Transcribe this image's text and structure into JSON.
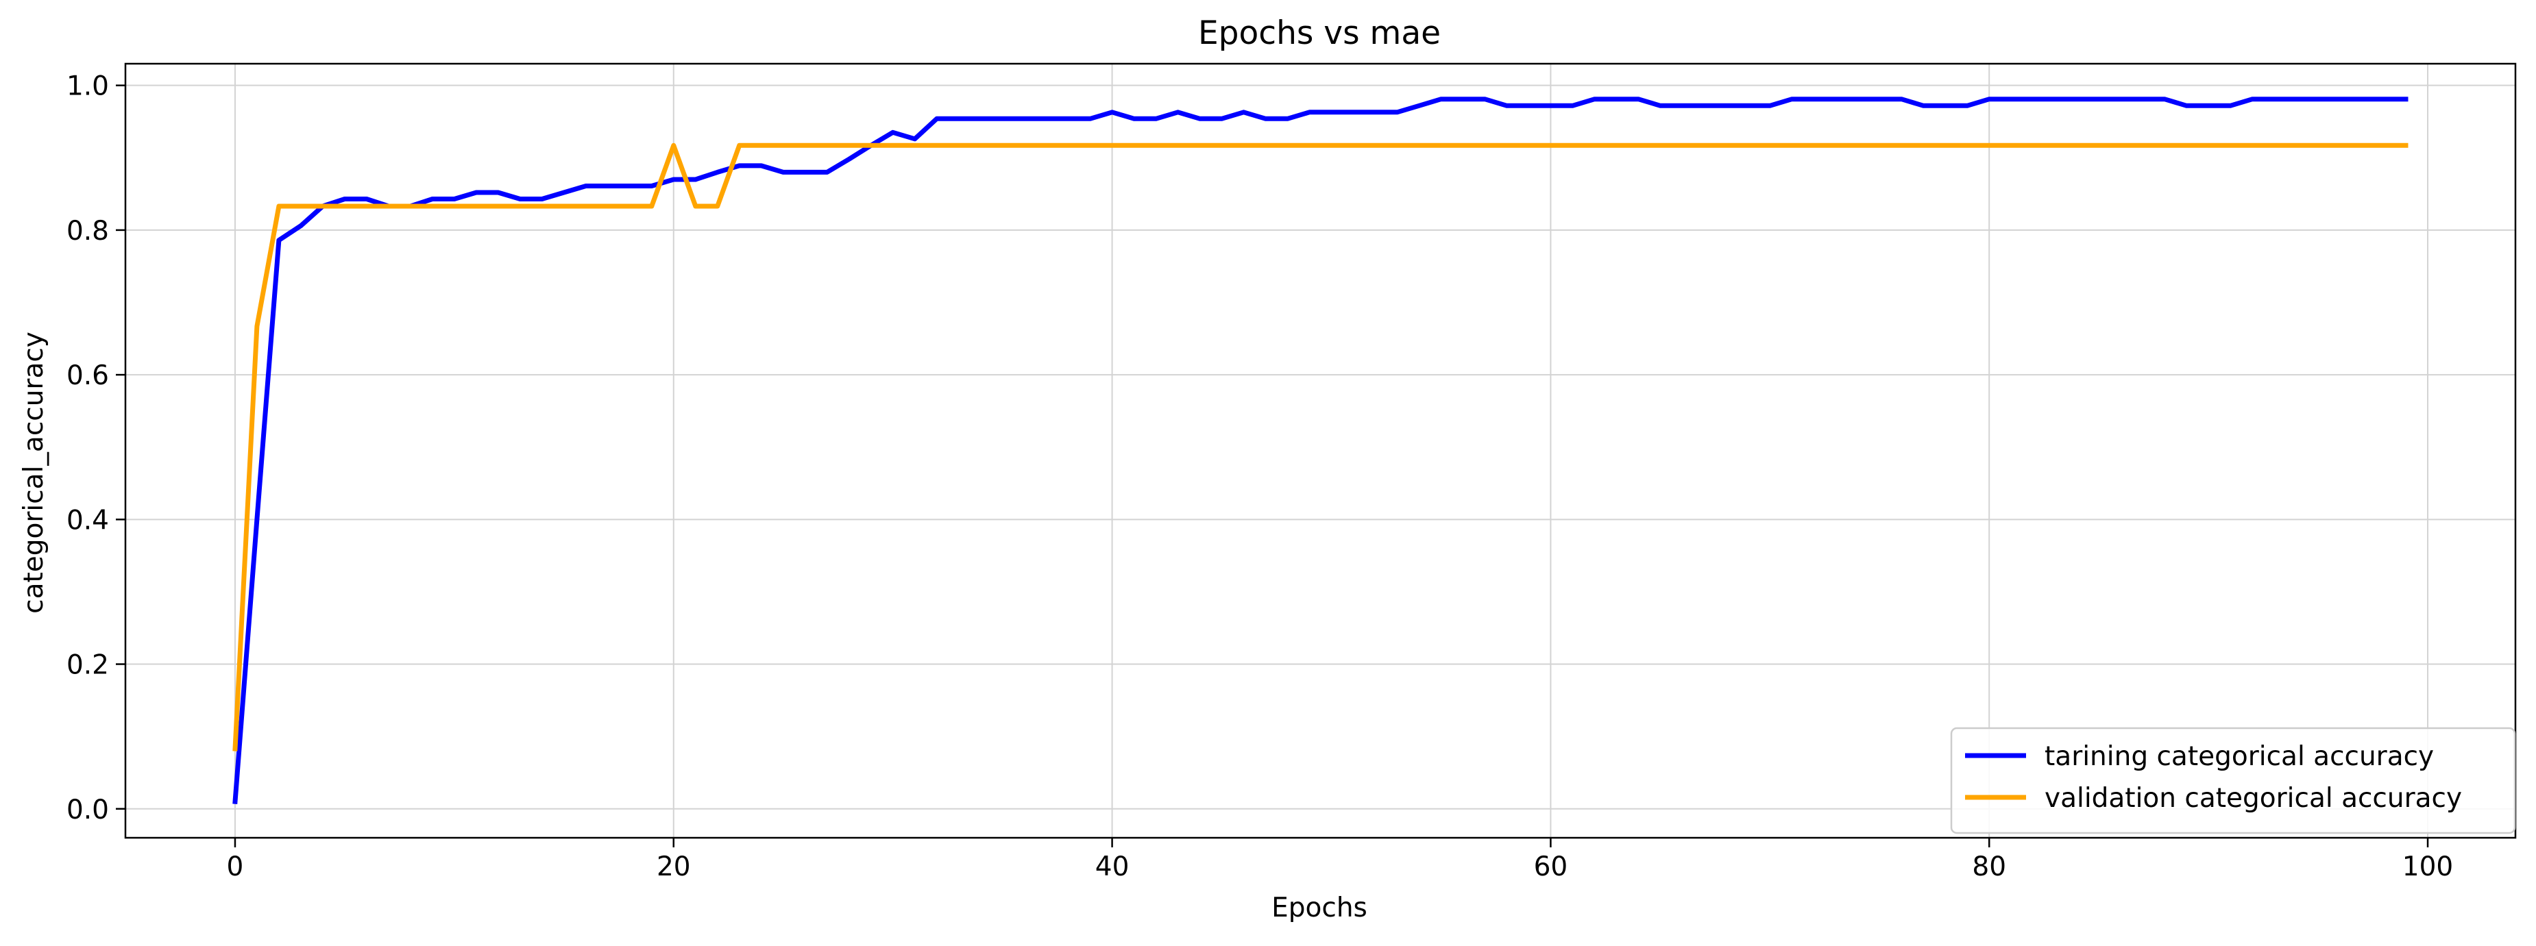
{
  "chart_data": {
    "type": "line",
    "title": "Epochs vs mae",
    "xlabel": "Epochs",
    "ylabel": "categorical_accuracy",
    "xlim": [
      -5,
      104
    ],
    "ylim": [
      -0.04,
      1.03
    ],
    "xticks": [
      0,
      20,
      40,
      60,
      80,
      100
    ],
    "yticks": [
      0.0,
      0.2,
      0.4,
      0.6,
      0.8,
      1.0
    ],
    "xtick_labels": [
      "0",
      "20",
      "40",
      "60",
      "80",
      "100"
    ],
    "ytick_labels": [
      "0.0",
      "0.2",
      "0.4",
      "0.6",
      "0.8",
      "1.0"
    ],
    "grid": true,
    "legend_position": "lower-right",
    "x": [
      0,
      1,
      2,
      3,
      4,
      5,
      6,
      7,
      8,
      9,
      10,
      11,
      12,
      13,
      14,
      15,
      16,
      17,
      18,
      19,
      20,
      21,
      22,
      23,
      24,
      25,
      26,
      27,
      28,
      29,
      30,
      31,
      32,
      33,
      34,
      35,
      36,
      37,
      38,
      39,
      40,
      41,
      42,
      43,
      44,
      45,
      46,
      47,
      48,
      49,
      50,
      51,
      52,
      53,
      54,
      55,
      56,
      57,
      58,
      59,
      60,
      61,
      62,
      63,
      64,
      65,
      66,
      67,
      68,
      69,
      70,
      71,
      72,
      73,
      74,
      75,
      76,
      77,
      78,
      79,
      80,
      81,
      82,
      83,
      84,
      85,
      86,
      87,
      88,
      89,
      90,
      91,
      92,
      93,
      94,
      95,
      96,
      97,
      98,
      99
    ],
    "series": [
      {
        "name": "tarining categorical accuracy",
        "color": "#0000ff",
        "values": [
          0.01,
          0.4,
          0.786,
          0.806,
          0.833,
          0.843,
          0.843,
          0.833,
          0.833,
          0.843,
          0.843,
          0.852,
          0.852,
          0.843,
          0.843,
          0.852,
          0.861,
          0.861,
          0.861,
          0.861,
          0.87,
          0.87,
          0.88,
          0.889,
          0.889,
          0.88,
          0.88,
          0.88,
          0.898,
          0.917,
          0.935,
          0.926,
          0.954,
          0.954,
          0.954,
          0.954,
          0.954,
          0.954,
          0.954,
          0.954,
          0.963,
          0.954,
          0.954,
          0.963,
          0.954,
          0.954,
          0.963,
          0.954,
          0.954,
          0.963,
          0.963,
          0.963,
          0.963,
          0.963,
          0.972,
          0.981,
          0.981,
          0.981,
          0.972,
          0.972,
          0.972,
          0.972,
          0.981,
          0.981,
          0.981,
          0.972,
          0.972,
          0.972,
          0.972,
          0.972,
          0.972,
          0.981,
          0.981,
          0.981,
          0.981,
          0.981,
          0.981,
          0.972,
          0.972,
          0.972,
          0.981,
          0.981,
          0.981,
          0.981,
          0.981,
          0.981,
          0.981,
          0.981,
          0.981,
          0.972,
          0.972,
          0.972,
          0.981,
          0.981,
          0.981,
          0.981,
          0.981,
          0.981,
          0.981,
          0.981
        ]
      },
      {
        "name": "validation categorical accuracy",
        "color": "#ffa500",
        "values": [
          0.083,
          0.667,
          0.833,
          0.833,
          0.833,
          0.833,
          0.833,
          0.833,
          0.833,
          0.833,
          0.833,
          0.833,
          0.833,
          0.833,
          0.833,
          0.833,
          0.833,
          0.833,
          0.833,
          0.833,
          0.917,
          0.833,
          0.833,
          0.917,
          0.917,
          0.917,
          0.917,
          0.917,
          0.917,
          0.917,
          0.917,
          0.917,
          0.917,
          0.917,
          0.917,
          0.917,
          0.917,
          0.917,
          0.917,
          0.917,
          0.917,
          0.917,
          0.917,
          0.917,
          0.917,
          0.917,
          0.917,
          0.917,
          0.917,
          0.917,
          0.917,
          0.917,
          0.917,
          0.917,
          0.917,
          0.917,
          0.917,
          0.917,
          0.917,
          0.917,
          0.917,
          0.917,
          0.917,
          0.917,
          0.917,
          0.917,
          0.917,
          0.917,
          0.917,
          0.917,
          0.917,
          0.917,
          0.917,
          0.917,
          0.917,
          0.917,
          0.917,
          0.917,
          0.917,
          0.917,
          0.917,
          0.917,
          0.917,
          0.917,
          0.917,
          0.917,
          0.917,
          0.917,
          0.917,
          0.917,
          0.917,
          0.917,
          0.917,
          0.917,
          0.917,
          0.917,
          0.917,
          0.917,
          0.917,
          0.917
        ]
      }
    ]
  }
}
